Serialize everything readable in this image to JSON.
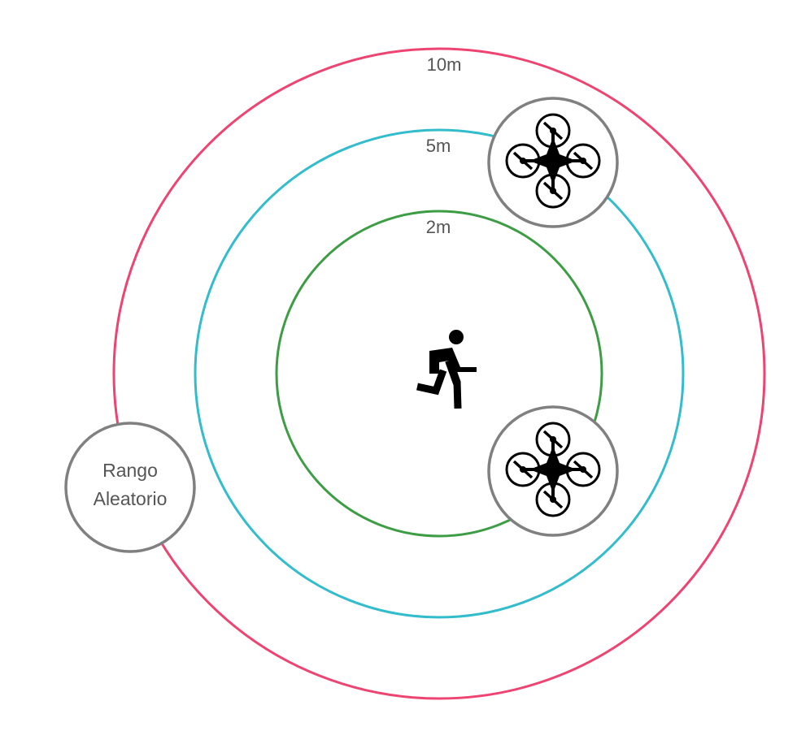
{
  "rings": [
    {
      "label": "10m",
      "color": "#ee4471"
    },
    {
      "label": "5m",
      "color": "#33bccc"
    },
    {
      "label": "2m",
      "color": "#3d9d45"
    }
  ],
  "center": {
    "icon": "running-person-icon"
  },
  "random_node": {
    "line1": "Rango",
    "line2": "Aleatorio",
    "border_color": "#808080"
  },
  "drones": [
    {
      "icon": "drone-icon",
      "border_color": "#808080"
    },
    {
      "icon": "drone-icon",
      "border_color": "#808080"
    }
  ]
}
